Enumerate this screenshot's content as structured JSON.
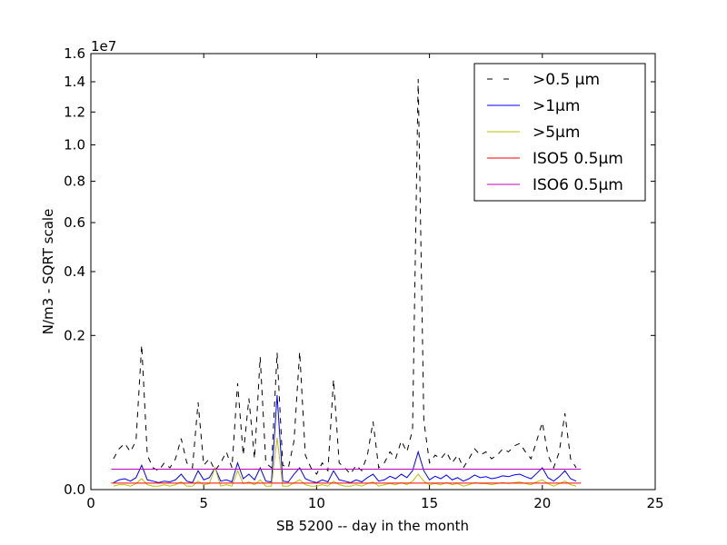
{
  "chart_data": {
    "type": "line",
    "y_axis_label": "N/m3 - SQRT scale",
    "x_axis_label": "SB 5200 -- day in the month",
    "y_offset_label": "1e7",
    "yscale": "sqrt",
    "xlim": [
      0,
      25
    ],
    "xticks": [
      0,
      5,
      10,
      15,
      20,
      25
    ],
    "ylim": [
      0,
      1.6
    ],
    "yticks": [
      {
        "value": 0,
        "label": "0.0"
      },
      0.2,
      0.4,
      0.6,
      0.8,
      {
        "value": 1,
        "label": "1.0"
      },
      1.2,
      1.4,
      1.6
    ],
    "legend_position": "upper right",
    "x": [
      1,
      1.25,
      1.5,
      1.75,
      2,
      2.25,
      2.5,
      2.75,
      3,
      3.25,
      3.5,
      3.75,
      4,
      4.25,
      4.5,
      4.75,
      5,
      5.25,
      5.5,
      5.75,
      6,
      6.25,
      6.5,
      6.75,
      7,
      7.25,
      7.5,
      7.75,
      8,
      8.25,
      8.5,
      8.75,
      9,
      9.25,
      9.5,
      9.75,
      10,
      10.25,
      10.5,
      10.75,
      11,
      11.25,
      11.5,
      11.75,
      12,
      12.25,
      12.5,
      12.75,
      13,
      13.25,
      13.5,
      13.75,
      14,
      14.25,
      14.5,
      14.75,
      15,
      15.25,
      15.5,
      15.75,
      16,
      16.25,
      16.5,
      16.75,
      17,
      17.25,
      17.5,
      17.75,
      18,
      18.25,
      18.5,
      18.75,
      19,
      19.25,
      19.5,
      19.75,
      20,
      20.25,
      20.5,
      20.75,
      21,
      21.25,
      21.5
    ],
    "series": [
      {
        "name": ">0.5 µm",
        "color": "#000000",
        "dashed": true,
        "values": [
          0.008,
          0.014,
          0.018,
          0.012,
          0.02,
          0.176,
          0.01,
          0.004,
          0.003,
          0.006,
          0.004,
          0.008,
          0.022,
          0.006,
          0.004,
          0.064,
          0.005,
          0.008,
          0.003,
          0.006,
          0.012,
          0.004,
          0.095,
          0.01,
          0.07,
          0.008,
          0.148,
          0.006,
          0.004,
          0.158,
          0.005,
          0.004,
          0.02,
          0.16,
          0.01,
          0.004,
          0.002,
          0.006,
          0.003,
          0.102,
          0.006,
          0.004,
          0.002,
          0.005,
          0.003,
          0.01,
          0.039,
          0.004,
          0.006,
          0.012,
          0.008,
          0.02,
          0.012,
          0.03,
          1.419,
          0.04,
          0.006,
          0.01,
          0.008,
          0.012,
          0.006,
          0.01,
          0.004,
          0.008,
          0.014,
          0.01,
          0.012,
          0.008,
          0.01,
          0.014,
          0.012,
          0.016,
          0.018,
          0.012,
          0.008,
          0.02,
          0.038,
          0.01,
          0.004,
          0.012,
          0.049,
          0.008,
          0.004
        ]
      },
      {
        "name": ">1µm",
        "color": "#0000ff",
        "dashed": false,
        "values": [
          0.0004,
          0.0008,
          0.001,
          0.0006,
          0.0012,
          0.005,
          0.0008,
          0.0006,
          0.0004,
          0.0006,
          0.0005,
          0.0008,
          0.002,
          0.0006,
          0.0004,
          0.003,
          0.0008,
          0.0012,
          0.004,
          0.0006,
          0.0008,
          0.0005,
          0.006,
          0.001,
          0.002,
          0.0008,
          0.004,
          0.0006,
          0.0005,
          0.075,
          0.0006,
          0.0005,
          0.002,
          0.004,
          0.001,
          0.0006,
          0.0004,
          0.0008,
          0.0005,
          0.003,
          0.0008,
          0.0006,
          0.0004,
          0.0008,
          0.0005,
          0.0012,
          0.002,
          0.0006,
          0.0008,
          0.0015,
          0.001,
          0.002,
          0.0012,
          0.003,
          0.012,
          0.003,
          0.0008,
          0.0015,
          0.001,
          0.0018,
          0.0008,
          0.0012,
          0.0006,
          0.001,
          0.0018,
          0.0012,
          0.0014,
          0.001,
          0.0012,
          0.0016,
          0.0014,
          0.0018,
          0.002,
          0.0014,
          0.001,
          0.0022,
          0.004,
          0.0012,
          0.0006,
          0.0014,
          0.003,
          0.001,
          0.0006
        ]
      },
      {
        "name": ">5µm",
        "color": "#bfbf00",
        "dashed": false,
        "values": [
          0.0001,
          0.0002,
          0.0002,
          0.0001,
          0.0003,
          0.001,
          0.0002,
          0.0001,
          0.0001,
          0.0002,
          0.0001,
          0.0002,
          0.0005,
          0.0001,
          0.0001,
          0.0006,
          0.0002,
          0.0003,
          0.004,
          0.0001,
          0.0002,
          0.0001,
          0.003,
          0.0003,
          0.0005,
          0.0002,
          0.0008,
          0.0001,
          0.0001,
          0.0226,
          0.0001,
          0.0001,
          0.0004,
          0.0008,
          0.0002,
          0.0001,
          0.0001,
          0.0002,
          0.0001,
          0.0006,
          0.0002,
          0.0001,
          0.0001,
          0.0002,
          0.0001,
          0.0003,
          0.0005,
          0.0001,
          0.0002,
          0.0003,
          0.0002,
          0.0004,
          0.0002,
          0.0006,
          0.002,
          0.0006,
          0.0002,
          0.0003,
          0.0002,
          0.0004,
          0.0002,
          0.0003,
          0.0001,
          0.0002,
          0.0004,
          0.0003,
          0.0003,
          0.0002,
          0.0003,
          0.0004,
          0.0003,
          0.0004,
          0.0005,
          0.0003,
          0.0002,
          0.0005,
          0.0008,
          0.0003,
          0.0001,
          0.0003,
          0.0006,
          0.0002,
          0.0001
        ]
      },
      {
        "name": "ISO5 0.5µm",
        "color": "#ff0000",
        "dashed": false,
        "x": [
          0.9,
          21.7
        ],
        "values": [
          0.000352,
          0.000352
        ]
      },
      {
        "name": "ISO6 0.5µm",
        "color": "#bf00bf",
        "dashed": false,
        "x": [
          0.9,
          21.7
        ],
        "values": [
          0.00352,
          0.00352
        ]
      }
    ]
  }
}
